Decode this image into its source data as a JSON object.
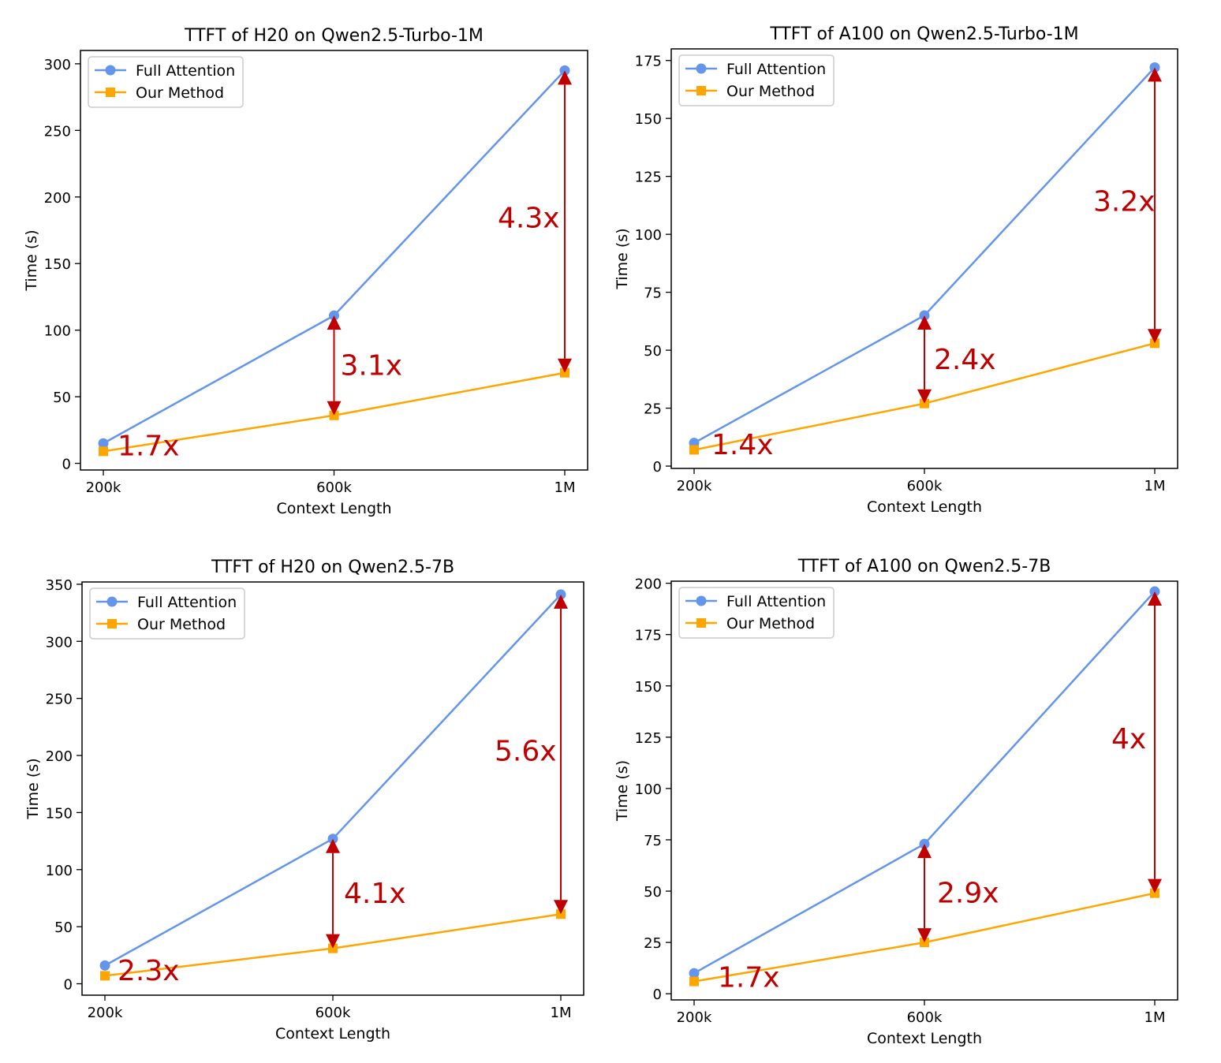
{
  "colors": {
    "full_attention": "#6495ED",
    "our_method": "#FFA500",
    "annotation": "#C00000",
    "axis": "#000000",
    "legend_border": "#cccccc"
  },
  "chart_data": [
    {
      "type": "line",
      "title": "TTFT of H20 on Qwen2.5-Turbo-1M",
      "xlabel": "Context Length",
      "ylabel": "Time (s)",
      "categories": [
        "200k",
        "600k",
        "1M"
      ],
      "ylim": [
        -5,
        310
      ],
      "yticks": [
        0,
        50,
        100,
        150,
        200,
        250,
        300
      ],
      "grid": false,
      "legend": "upper-left",
      "series": [
        {
          "name": "Full Attention",
          "marker": "circle",
          "values": [
            15,
            111,
            295
          ]
        },
        {
          "name": "Our Method",
          "marker": "square",
          "values": [
            9,
            36,
            68
          ]
        }
      ],
      "annotations": [
        {
          "text": "1.7x",
          "category": "200k",
          "arrow": false
        },
        {
          "text": "3.1x",
          "category": "600k",
          "arrow": true
        },
        {
          "text": "4.3x",
          "category": "1M",
          "arrow": true
        }
      ]
    },
    {
      "type": "line",
      "title": "TTFT of A100 on Qwen2.5-Turbo-1M",
      "xlabel": "Context Length",
      "ylabel": "Time (s)",
      "categories": [
        "200k",
        "600k",
        "1M"
      ],
      "ylim": [
        -1,
        180
      ],
      "yticks": [
        0,
        25,
        50,
        75,
        100,
        125,
        150,
        175
      ],
      "grid": false,
      "legend": "upper-left",
      "series": [
        {
          "name": "Full Attention",
          "marker": "circle",
          "values": [
            10,
            65,
            172
          ]
        },
        {
          "name": "Our Method",
          "marker": "square",
          "values": [
            7,
            27,
            53
          ]
        }
      ],
      "annotations": [
        {
          "text": "1.4x",
          "category": "200k",
          "arrow": false
        },
        {
          "text": "2.4x",
          "category": "600k",
          "arrow": true
        },
        {
          "text": "3.2x",
          "category": "1M",
          "arrow": true
        }
      ]
    },
    {
      "type": "line",
      "title": "TTFT of H20 on Qwen2.5-7B",
      "xlabel": "Context Length",
      "ylabel": "Time (s)",
      "categories": [
        "200k",
        "600k",
        "1M"
      ],
      "ylim": [
        -10,
        352
      ],
      "yticks": [
        0,
        50,
        100,
        150,
        200,
        250,
        300,
        350
      ],
      "grid": false,
      "legend": "upper-left",
      "series": [
        {
          "name": "Full Attention",
          "marker": "circle",
          "values": [
            16,
            127,
            341
          ]
        },
        {
          "name": "Our Method",
          "marker": "square",
          "values": [
            7,
            31,
            61
          ]
        }
      ],
      "annotations": [
        {
          "text": "2.3x",
          "category": "200k",
          "arrow": false
        },
        {
          "text": "4.1x",
          "category": "600k",
          "arrow": true
        },
        {
          "text": "5.6x",
          "category": "1M",
          "arrow": true
        }
      ]
    },
    {
      "type": "line",
      "title": "TTFT of A100 on Qwen2.5-7B",
      "xlabel": "Context Length",
      "ylabel": "Time (s)",
      "categories": [
        "200k",
        "600k",
        "1M"
      ],
      "ylim": [
        -3,
        201
      ],
      "yticks": [
        0,
        25,
        50,
        75,
        100,
        125,
        150,
        175,
        200
      ],
      "grid": false,
      "legend": "upper-left",
      "series": [
        {
          "name": "Full Attention",
          "marker": "circle",
          "values": [
            10,
            73,
            196
          ]
        },
        {
          "name": "Our Method",
          "marker": "square",
          "values": [
            6,
            25,
            49
          ]
        }
      ],
      "annotations": [
        {
          "text": "1.7x",
          "category": "200k",
          "arrow": false
        },
        {
          "text": "2.9x",
          "category": "600k",
          "arrow": true
        },
        {
          "text": "4x",
          "category": "1M",
          "arrow": true
        }
      ]
    }
  ]
}
